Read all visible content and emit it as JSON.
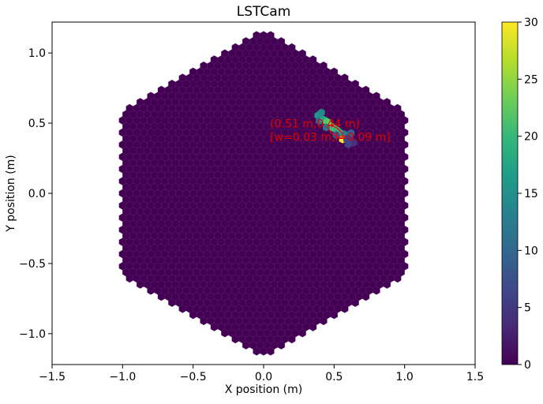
{
  "chart_data": {
    "type": "heatmap",
    "subtype": "hexagonal camera image",
    "title": "LSTCam",
    "xlabel": "X position (m)",
    "ylabel": "Y position (m)",
    "xlim": [
      -1.5,
      1.5
    ],
    "ylim": [
      -1.22,
      1.22
    ],
    "xticks": [
      {
        "value": -1.5,
        "label": "−1.5"
      },
      {
        "value": -1.0,
        "label": "−1.0"
      },
      {
        "value": -0.5,
        "label": "−0.5"
      },
      {
        "value": 0.0,
        "label": "0.0"
      },
      {
        "value": 0.5,
        "label": "0.5"
      },
      {
        "value": 1.0,
        "label": "1.0"
      },
      {
        "value": 1.5,
        "label": "1.5"
      }
    ],
    "yticks": [
      {
        "value": 1.0,
        "label": "1.0"
      },
      {
        "value": 0.5,
        "label": "0.5"
      },
      {
        "value": 0.0,
        "label": "0.0"
      },
      {
        "value": -0.5,
        "label": "−0.5"
      },
      {
        "value": -1.0,
        "label": "−1.0"
      }
    ],
    "camera_radius_m": 1.18,
    "pixel_pitch_m": 0.05,
    "background_value": 0,
    "colormap": "viridis",
    "colormap_stops": [
      "#440154",
      "#482878",
      "#3e4989",
      "#31688e",
      "#26828e",
      "#1f9e89",
      "#35b779",
      "#6ece58",
      "#b5de2b",
      "#fde725"
    ],
    "colorbar": {
      "min": 0,
      "max": 30,
      "ticks": [
        {
          "value": 0,
          "label": "0"
        },
        {
          "value": 5,
          "label": "5"
        },
        {
          "value": 10,
          "label": "10"
        },
        {
          "value": 15,
          "label": "15"
        },
        {
          "value": 20,
          "label": "20"
        },
        {
          "value": 25,
          "label": "25"
        },
        {
          "value": 30,
          "label": "30"
        }
      ]
    },
    "signal_pixels": [
      {
        "x": 0.385,
        "y": 0.555,
        "value": 16
      },
      {
        "x": 0.41,
        "y": 0.575,
        "value": 14
      },
      {
        "x": 0.395,
        "y": 0.515,
        "value": 10
      },
      {
        "x": 0.425,
        "y": 0.525,
        "value": 18
      },
      {
        "x": 0.45,
        "y": 0.51,
        "value": 22
      },
      {
        "x": 0.47,
        "y": 0.485,
        "value": 24
      },
      {
        "x": 0.445,
        "y": 0.47,
        "value": 12
      },
      {
        "x": 0.495,
        "y": 0.465,
        "value": 21
      },
      {
        "x": 0.52,
        "y": 0.45,
        "value": 20
      },
      {
        "x": 0.545,
        "y": 0.43,
        "value": 19
      },
      {
        "x": 0.515,
        "y": 0.415,
        "value": 8
      },
      {
        "x": 0.575,
        "y": 0.42,
        "value": 12
      },
      {
        "x": 0.56,
        "y": 0.385,
        "value": 30
      },
      {
        "x": 0.59,
        "y": 0.385,
        "value": 7
      },
      {
        "x": 0.61,
        "y": 0.4,
        "value": 5
      },
      {
        "x": 0.62,
        "y": 0.43,
        "value": 9
      },
      {
        "x": 0.64,
        "y": 0.36,
        "value": 4
      },
      {
        "x": 0.6,
        "y": 0.35,
        "value": 6
      }
    ],
    "ellipse": {
      "cx": 0.51,
      "cy": 0.44,
      "width": 0.03,
      "length": 0.09,
      "angle_deg": -38,
      "color": "#ff0000"
    },
    "annotation": {
      "line1": "(0.51 m,0.44 m)",
      "line2": "[w=0.03 m,l=0.09 m]",
      "color": "#e00000"
    }
  }
}
